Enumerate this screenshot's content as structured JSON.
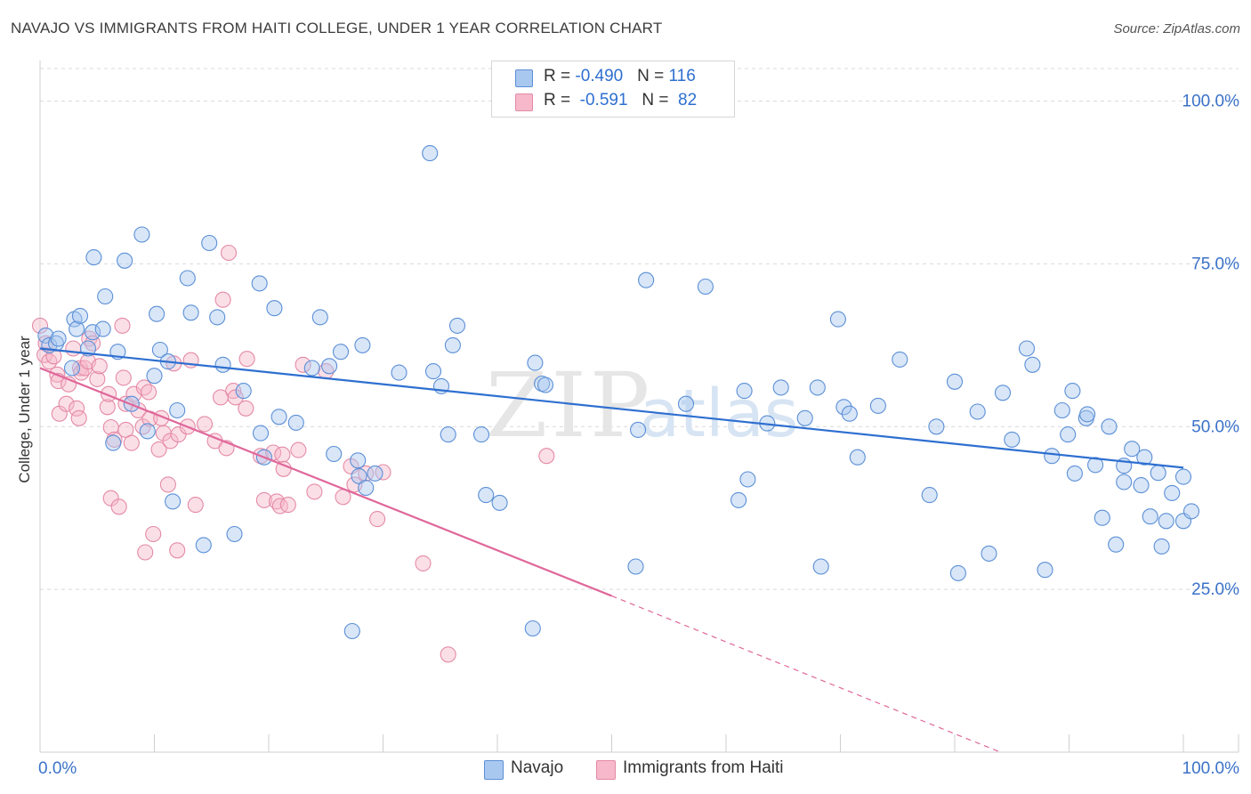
{
  "title": "NAVAJO VS IMMIGRANTS FROM HAITI COLLEGE, UNDER 1 YEAR CORRELATION CHART",
  "source": "Source: ZipAtlas.com",
  "watermark": {
    "zip": "ZIP",
    "atlas": "atlas"
  },
  "legend": {
    "navajo": {
      "r_label": "R = ",
      "r_value": "-0.490",
      "n_label": "N = ",
      "n_value": "116"
    },
    "haiti": {
      "r_label": "R = ",
      "r_value": " -0.591",
      "n_label": "N = ",
      "n_value": " 82"
    }
  },
  "colors": {
    "navajo_fill": "#a9c8f0",
    "navajo_stroke": "#5b8fd6",
    "navajo_line": "#2e6fd0",
    "haiti_fill": "#f6b8ca",
    "haiti_stroke": "#e48aa6",
    "haiti_line": "#e0679a",
    "tick_label": "#3b72c8",
    "grid": "#d9d9d9"
  },
  "chart_data": {
    "type": "scatter",
    "title": "NAVAJO VS IMMIGRANTS FROM HAITI COLLEGE, UNDER 1 YEAR CORRELATION CHART",
    "xlabel": "",
    "ylabel": "College, Under 1 year",
    "xlim": [
      0,
      100
    ],
    "ylim": [
      0,
      105
    ],
    "x_tick_labels": [
      "0.0%",
      "100.0%"
    ],
    "y_ticks": [
      25,
      50,
      75,
      100
    ],
    "y_tick_labels": [
      "25.0%",
      "50.0%",
      "75.0%",
      "100.0%"
    ],
    "grid": true,
    "legend_position": "top-center",
    "series": [
      {
        "name": "Navajo",
        "r": -0.49,
        "n": 116,
        "trend": {
          "x": [
            0,
            100
          ],
          "y": [
            62,
            43.7
          ]
        },
        "points": [
          [
            0.5,
            64
          ],
          [
            0.8,
            62.5
          ],
          [
            1.4,
            62.8
          ],
          [
            1.6,
            63.5
          ],
          [
            2.8,
            59
          ],
          [
            3,
            66.5
          ],
          [
            3.2,
            65
          ],
          [
            3.5,
            67
          ],
          [
            4.2,
            62
          ],
          [
            4.6,
            64.5
          ],
          [
            4.7,
            76
          ],
          [
            5.5,
            65
          ],
          [
            5.7,
            70
          ],
          [
            6.4,
            47.5
          ],
          [
            6.8,
            61.5
          ],
          [
            7.4,
            75.5
          ],
          [
            8,
            53.5
          ],
          [
            8.9,
            79.5
          ],
          [
            9.4,
            49.3
          ],
          [
            10,
            57.8
          ],
          [
            10.2,
            67.3
          ],
          [
            10.5,
            61.8
          ],
          [
            11.2,
            60
          ],
          [
            11.6,
            38.5
          ],
          [
            12,
            52.5
          ],
          [
            12.9,
            72.8
          ],
          [
            13.2,
            67.5
          ],
          [
            14.3,
            31.8
          ],
          [
            14.8,
            78.2
          ],
          [
            15.5,
            66.8
          ],
          [
            16,
            59.5
          ],
          [
            17,
            33.5
          ],
          [
            17.8,
            55.5
          ],
          [
            19.2,
            72
          ],
          [
            19.3,
            49
          ],
          [
            19.6,
            45.3
          ],
          [
            20.5,
            68.2
          ],
          [
            20.9,
            51.5
          ],
          [
            22.4,
            50.6
          ],
          [
            23.8,
            59
          ],
          [
            24.5,
            66.8
          ],
          [
            25.3,
            59.3
          ],
          [
            25.7,
            45.8
          ],
          [
            26.3,
            61.5
          ],
          [
            27.3,
            18.6
          ],
          [
            27.8,
            44.8
          ],
          [
            27.9,
            42.4
          ],
          [
            28.2,
            62.5
          ],
          [
            28.5,
            40.6
          ],
          [
            29.3,
            42.8
          ],
          [
            31.4,
            58.3
          ],
          [
            34.1,
            92
          ],
          [
            34.4,
            58.5
          ],
          [
            35.1,
            56.2
          ],
          [
            35.7,
            48.8
          ],
          [
            36.1,
            62.5
          ],
          [
            36.5,
            65.5
          ],
          [
            38.6,
            48.8
          ],
          [
            39,
            39.5
          ],
          [
            40.2,
            38.3
          ],
          [
            43.1,
            19
          ],
          [
            43.3,
            59.8
          ],
          [
            43.9,
            56.6
          ],
          [
            44.2,
            56.4
          ],
          [
            52.1,
            28.5
          ],
          [
            52.3,
            49.5
          ],
          [
            53,
            72.5
          ],
          [
            56.5,
            53.5
          ],
          [
            58.2,
            71.5
          ],
          [
            61.1,
            38.7
          ],
          [
            61.6,
            55.5
          ],
          [
            61.9,
            41.9
          ],
          [
            63.6,
            50.5
          ],
          [
            64.8,
            56
          ],
          [
            66.9,
            51.3
          ],
          [
            68,
            56
          ],
          [
            68.3,
            28.5
          ],
          [
            69.8,
            66.5
          ],
          [
            70.3,
            53
          ],
          [
            70.8,
            52
          ],
          [
            71.5,
            45.3
          ],
          [
            73.3,
            53.2
          ],
          [
            75.2,
            60.3
          ],
          [
            77.8,
            39.5
          ],
          [
            78.4,
            50
          ],
          [
            80,
            56.9
          ],
          [
            80.3,
            27.5
          ],
          [
            82,
            52.3
          ],
          [
            83,
            30.5
          ],
          [
            84.2,
            55.2
          ],
          [
            85,
            48
          ],
          [
            86.3,
            62
          ],
          [
            86.8,
            59.5
          ],
          [
            87.9,
            28
          ],
          [
            88.5,
            45.5
          ],
          [
            89.4,
            52.5
          ],
          [
            89.9,
            48.8
          ],
          [
            90.3,
            55.5
          ],
          [
            90.5,
            42.8
          ],
          [
            91.5,
            51.3
          ],
          [
            91.6,
            51.9
          ],
          [
            92.3,
            44.1
          ],
          [
            92.9,
            36
          ],
          [
            93.5,
            50
          ],
          [
            94.1,
            31.9
          ],
          [
            94.8,
            41.5
          ],
          [
            94.8,
            44
          ],
          [
            95.5,
            46.6
          ],
          [
            96.3,
            41
          ],
          [
            96.6,
            45.3
          ],
          [
            97.1,
            36.2
          ],
          [
            97.8,
            42.9
          ],
          [
            98.1,
            31.6
          ],
          [
            98.5,
            35.5
          ],
          [
            99,
            39.8
          ],
          [
            100,
            42.3
          ],
          [
            100,
            35.5
          ],
          [
            100.7,
            37
          ]
        ]
      },
      {
        "name": "Immigrants from Haiti",
        "r": -0.591,
        "n": 82,
        "trend": {
          "x": [
            0,
            50
          ],
          "y": [
            59,
            24
          ]
        },
        "trend_dashed": {
          "x": [
            50,
            84
          ],
          "y": [
            24,
            0
          ]
        },
        "points": [
          [
            0,
            65.5
          ],
          [
            0.4,
            61
          ],
          [
            0.5,
            62.8
          ],
          [
            0.8,
            60
          ],
          [
            1.2,
            60.8
          ],
          [
            1.5,
            58
          ],
          [
            1.6,
            57
          ],
          [
            1.7,
            52
          ],
          [
            2.3,
            53.5
          ],
          [
            2.5,
            56.5
          ],
          [
            2.9,
            62
          ],
          [
            3.2,
            52.8
          ],
          [
            3.4,
            51.3
          ],
          [
            3.5,
            59
          ],
          [
            3.6,
            58.3
          ],
          [
            3.9,
            59
          ],
          [
            4.2,
            60
          ],
          [
            4.3,
            63.5
          ],
          [
            4.6,
            62.8
          ],
          [
            5,
            57.3
          ],
          [
            5.2,
            59.3
          ],
          [
            5.9,
            53
          ],
          [
            6,
            55
          ],
          [
            6.2,
            49.9
          ],
          [
            6.2,
            39
          ],
          [
            6.5,
            48
          ],
          [
            6.9,
            37.7
          ],
          [
            7.2,
            65.5
          ],
          [
            7.3,
            57.5
          ],
          [
            7.5,
            53.5
          ],
          [
            7.5,
            49.5
          ],
          [
            8,
            47.5
          ],
          [
            8.2,
            55
          ],
          [
            8.6,
            52.5
          ],
          [
            9,
            50
          ],
          [
            9.1,
            56
          ],
          [
            9.2,
            30.7
          ],
          [
            9.5,
            55.3
          ],
          [
            9.6,
            51.2
          ],
          [
            9.9,
            33.5
          ],
          [
            10.4,
            46.5
          ],
          [
            10.6,
            51.3
          ],
          [
            10.8,
            49
          ],
          [
            11.2,
            41.1
          ],
          [
            11.4,
            47.8
          ],
          [
            11.7,
            59.7
          ],
          [
            12,
            31
          ],
          [
            12.1,
            48.8
          ],
          [
            12.9,
            50
          ],
          [
            13.2,
            60.2
          ],
          [
            13.6,
            38
          ],
          [
            14.4,
            50.4
          ],
          [
            15.3,
            47.8
          ],
          [
            15.8,
            54.5
          ],
          [
            16,
            69.5
          ],
          [
            16.3,
            46.7
          ],
          [
            16.5,
            76.7
          ],
          [
            16.9,
            55.5
          ],
          [
            17.1,
            54.5
          ],
          [
            18,
            52.8
          ],
          [
            18.1,
            60.4
          ],
          [
            19.3,
            45.5
          ],
          [
            19.6,
            38.7
          ],
          [
            20.4,
            46
          ],
          [
            20.7,
            38.5
          ],
          [
            21,
            37.8
          ],
          [
            21.2,
            45.7
          ],
          [
            21.3,
            43.5
          ],
          [
            21.7,
            38
          ],
          [
            22.6,
            46.4
          ],
          [
            23,
            59.5
          ],
          [
            24,
            40
          ],
          [
            25,
            58.5
          ],
          [
            26.5,
            39.2
          ],
          [
            27.2,
            43.9
          ],
          [
            27.5,
            41.1
          ],
          [
            28.5,
            42.8
          ],
          [
            29.5,
            35.8
          ],
          [
            30,
            43
          ],
          [
            33.5,
            29
          ],
          [
            35.7,
            15
          ],
          [
            44.3,
            45.5
          ]
        ]
      }
    ]
  },
  "bottom_legend": {
    "navajo": "Navajo",
    "haiti": "Immigrants from Haiti"
  }
}
